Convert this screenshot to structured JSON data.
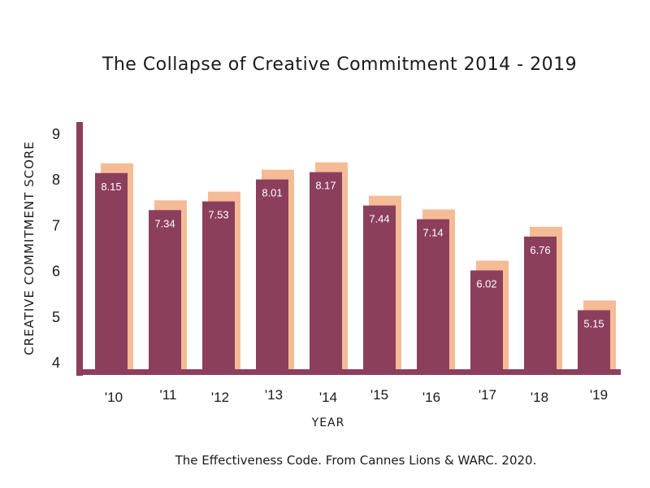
{
  "colors": {
    "bar": "#8c3f5d",
    "shadow": "#f5bb96",
    "axis": "#8c3f5d",
    "text": "#1a1a1a",
    "value_label": "#ffffff"
  },
  "source": "The Effectiveness Code. From Cannes Lions & WARC. 2020.",
  "chart_data": {
    "type": "bar",
    "title": "The Collapse of Creative Commitment 2014 - 2019",
    "xlabel": "YEAR",
    "ylabel": "CREATIVE COMMITMENT SCORE",
    "categories": [
      "'10",
      "'11",
      "'12",
      "'13",
      "'14",
      "'15",
      "'16",
      "'17",
      "'18",
      "'19"
    ],
    "values": [
      8.15,
      7.34,
      7.53,
      8.01,
      8.17,
      7.44,
      7.14,
      6.02,
      6.76,
      5.15
    ],
    "value_labels": [
      "8.15",
      "7.34",
      "7.53",
      "8.01",
      "8.17",
      "7.44",
      "7.14",
      "6.02",
      "6.76",
      "5.15"
    ],
    "y_ticks": [
      "4",
      "5",
      "6",
      "7",
      "8",
      "9"
    ],
    "ylim": [
      4,
      9
    ],
    "grid": false,
    "legend": "none"
  }
}
